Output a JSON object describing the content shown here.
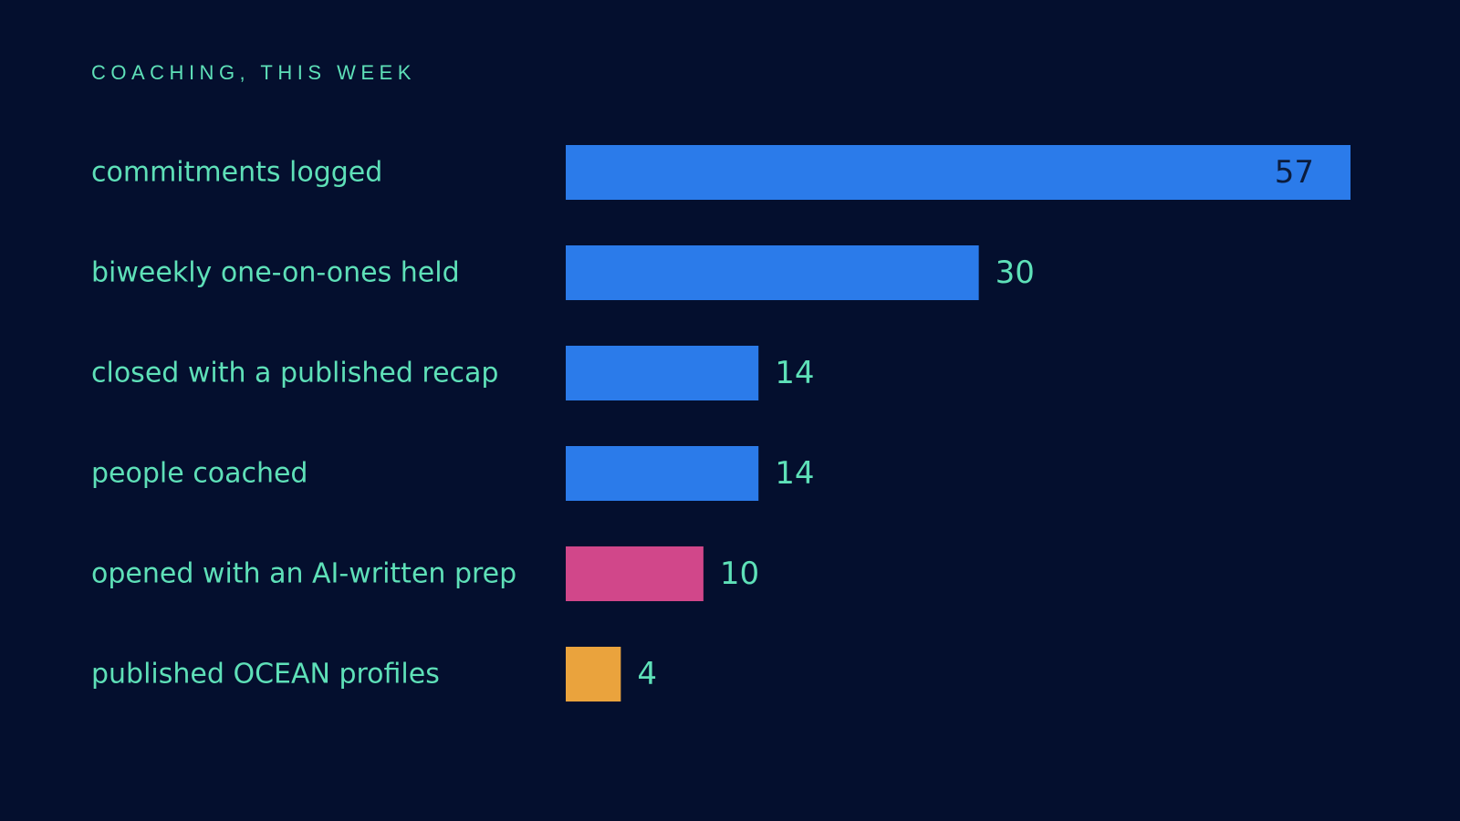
{
  "chart_data": {
    "type": "bar",
    "orientation": "horizontal",
    "title": "COACHING, THIS WEEK",
    "categories": [
      "commitments logged",
      "biweekly one-on-ones held",
      "closed with a published recap",
      "people coached",
      "opened with an AI-written prep",
      "published OCEAN profiles"
    ],
    "values": [
      57,
      30,
      14,
      14,
      10,
      4
    ],
    "bar_colors": [
      "#2b7bea",
      "#2b7bea",
      "#2b7bea",
      "#2b7bea",
      "#d1478a",
      "#eaa33d"
    ],
    "xlim": [
      0,
      57
    ],
    "grid": false,
    "legend": "none"
  },
  "colors": {
    "background": "#040f2e",
    "text": "#5ee0b8",
    "value_label_inside": "#0b1c3d"
  }
}
